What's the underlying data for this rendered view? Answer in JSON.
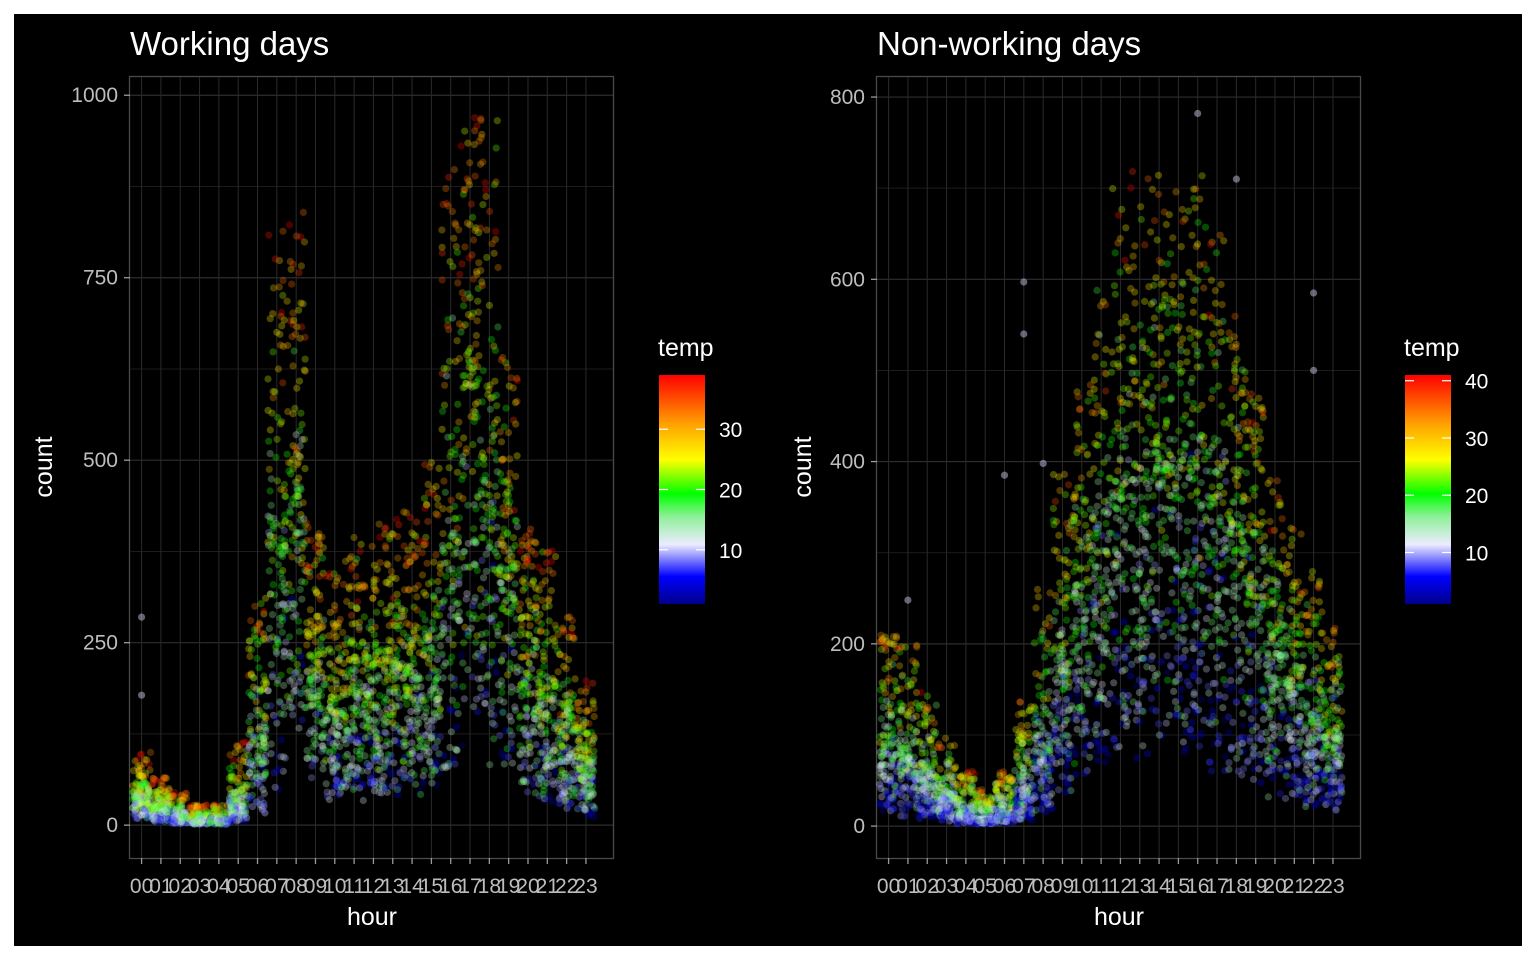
{
  "chart_data": [
    {
      "type": "scatter",
      "title": "Working days",
      "xlabel": "hour",
      "ylabel": "count",
      "x_categories": [
        "00",
        "01",
        "02",
        "03",
        "04",
        "05",
        "06",
        "07",
        "08",
        "09",
        "10",
        "11",
        "12",
        "13",
        "14",
        "15",
        "16",
        "17",
        "18",
        "19",
        "20",
        "21",
        "22",
        "23"
      ],
      "yticks": [
        0,
        250,
        500,
        750,
        1000
      ],
      "ylim": [
        -45,
        1025
      ],
      "grid": true,
      "point_alpha": 0.3,
      "color_by": "temp",
      "legend": {
        "title": "temp",
        "position": "right",
        "breaks": [
          10,
          20,
          30
        ],
        "range": [
          1,
          39
        ]
      },
      "hourly_profile": [
        {
          "hour": "00",
          "low": 8,
          "mid": 45,
          "high": 100
        },
        {
          "hour": "01",
          "low": 4,
          "mid": 24,
          "high": 65
        },
        {
          "hour": "02",
          "low": 2,
          "mid": 12,
          "high": 45
        },
        {
          "hour": "03",
          "low": 1,
          "mid": 7,
          "high": 28
        },
        {
          "hour": "04",
          "low": 1,
          "mid": 7,
          "high": 28
        },
        {
          "hour": "05",
          "low": 5,
          "mid": 30,
          "high": 115
        },
        {
          "hour": "06",
          "low": 15,
          "mid": 125,
          "high": 330
        },
        {
          "hour": "07",
          "low": 40,
          "mid": 380,
          "high": 830
        },
        {
          "hour": "08",
          "low": 120,
          "mid": 450,
          "high": 840
        },
        {
          "hour": "09",
          "low": 60,
          "mid": 230,
          "high": 420
        },
        {
          "hour": "10",
          "low": 30,
          "mid": 150,
          "high": 350
        },
        {
          "hour": "11",
          "low": 30,
          "mid": 180,
          "high": 400
        },
        {
          "hour": "12",
          "low": 40,
          "mid": 220,
          "high": 420
        },
        {
          "hour": "13",
          "low": 40,
          "mid": 220,
          "high": 420
        },
        {
          "hour": "14",
          "low": 40,
          "mid": 200,
          "high": 430
        },
        {
          "hour": "15",
          "low": 40,
          "mid": 240,
          "high": 500
        },
        {
          "hour": "16",
          "low": 60,
          "mid": 380,
          "high": 900
        },
        {
          "hour": "17",
          "low": 100,
          "mid": 600,
          "high": 975
        },
        {
          "hour": "18",
          "low": 80,
          "mid": 500,
          "high": 970
        },
        {
          "hour": "19",
          "low": 70,
          "mid": 350,
          "high": 650
        },
        {
          "hour": "20",
          "low": 40,
          "mid": 230,
          "high": 430
        },
        {
          "hour": "21",
          "low": 30,
          "mid": 170,
          "high": 380
        },
        {
          "hour": "22",
          "low": 20,
          "mid": 130,
          "high": 290
        },
        {
          "hour": "23",
          "low": 10,
          "mid": 90,
          "high": 200
        }
      ],
      "outliers": [
        {
          "hour": "00",
          "count": 285
        },
        {
          "hour": "00",
          "count": 178
        }
      ]
    },
    {
      "type": "scatter",
      "title": "Non-working days",
      "xlabel": "hour",
      "ylabel": "count",
      "x_categories": [
        "00",
        "01",
        "02",
        "03",
        "04",
        "05",
        "06",
        "07",
        "08",
        "09",
        "10",
        "11",
        "12",
        "13",
        "14",
        "15",
        "16",
        "17",
        "18",
        "19",
        "20",
        "21",
        "22",
        "23"
      ],
      "yticks": [
        0,
        200,
        400,
        600,
        800
      ],
      "ylim": [
        -35,
        822
      ],
      "grid": true,
      "point_alpha": 0.3,
      "color_by": "temp",
      "legend": {
        "title": "temp",
        "position": "right",
        "breaks": [
          10,
          20,
          30,
          40
        ],
        "range": [
          1,
          41
        ]
      },
      "hourly_profile": [
        {
          "hour": "00",
          "low": 15,
          "mid": 90,
          "high": 210
        },
        {
          "hour": "01",
          "low": 10,
          "mid": 75,
          "high": 200
        },
        {
          "hour": "02",
          "low": 8,
          "mid": 55,
          "high": 150
        },
        {
          "hour": "03",
          "low": 5,
          "mid": 35,
          "high": 100
        },
        {
          "hour": "04",
          "low": 2,
          "mid": 15,
          "high": 60
        },
        {
          "hour": "05",
          "low": 2,
          "mid": 8,
          "high": 40
        },
        {
          "hour": "06",
          "low": 3,
          "mid": 15,
          "high": 60
        },
        {
          "hour": "07",
          "low": 5,
          "mid": 40,
          "high": 140
        },
        {
          "hour": "08",
          "low": 15,
          "mid": 90,
          "high": 260
        },
        {
          "hour": "09",
          "low": 30,
          "mid": 170,
          "high": 390
        },
        {
          "hour": "10",
          "low": 50,
          "mid": 250,
          "high": 500
        },
        {
          "hour": "11",
          "low": 60,
          "mid": 300,
          "high": 600
        },
        {
          "hour": "12",
          "low": 70,
          "mid": 360,
          "high": 700
        },
        {
          "hour": "13",
          "low": 70,
          "mid": 380,
          "high": 720
        },
        {
          "hour": "14",
          "low": 80,
          "mid": 390,
          "high": 720
        },
        {
          "hour": "15",
          "low": 80,
          "mid": 390,
          "high": 700
        },
        {
          "hour": "16",
          "low": 70,
          "mid": 380,
          "high": 720
        },
        {
          "hour": "17",
          "low": 60,
          "mid": 360,
          "high": 650
        },
        {
          "hour": "18",
          "low": 50,
          "mid": 320,
          "high": 560
        },
        {
          "hour": "19",
          "low": 40,
          "mid": 260,
          "high": 480
        },
        {
          "hour": "20",
          "low": 30,
          "mid": 200,
          "high": 380
        },
        {
          "hour": "21",
          "low": 25,
          "mid": 150,
          "high": 330
        },
        {
          "hour": "22",
          "low": 20,
          "mid": 120,
          "high": 280
        },
        {
          "hour": "23",
          "low": 15,
          "mid": 95,
          "high": 220
        }
      ],
      "outliers": [
        {
          "hour": "01",
          "count": 248
        },
        {
          "hour": "06",
          "count": 385
        },
        {
          "hour": "07",
          "count": 597
        },
        {
          "hour": "07",
          "count": 540
        },
        {
          "hour": "08",
          "count": 398
        },
        {
          "hour": "16",
          "count": 782
        },
        {
          "hour": "18",
          "count": 710
        },
        {
          "hour": "22",
          "count": 585
        },
        {
          "hour": "22",
          "count": 500
        }
      ]
    }
  ]
}
